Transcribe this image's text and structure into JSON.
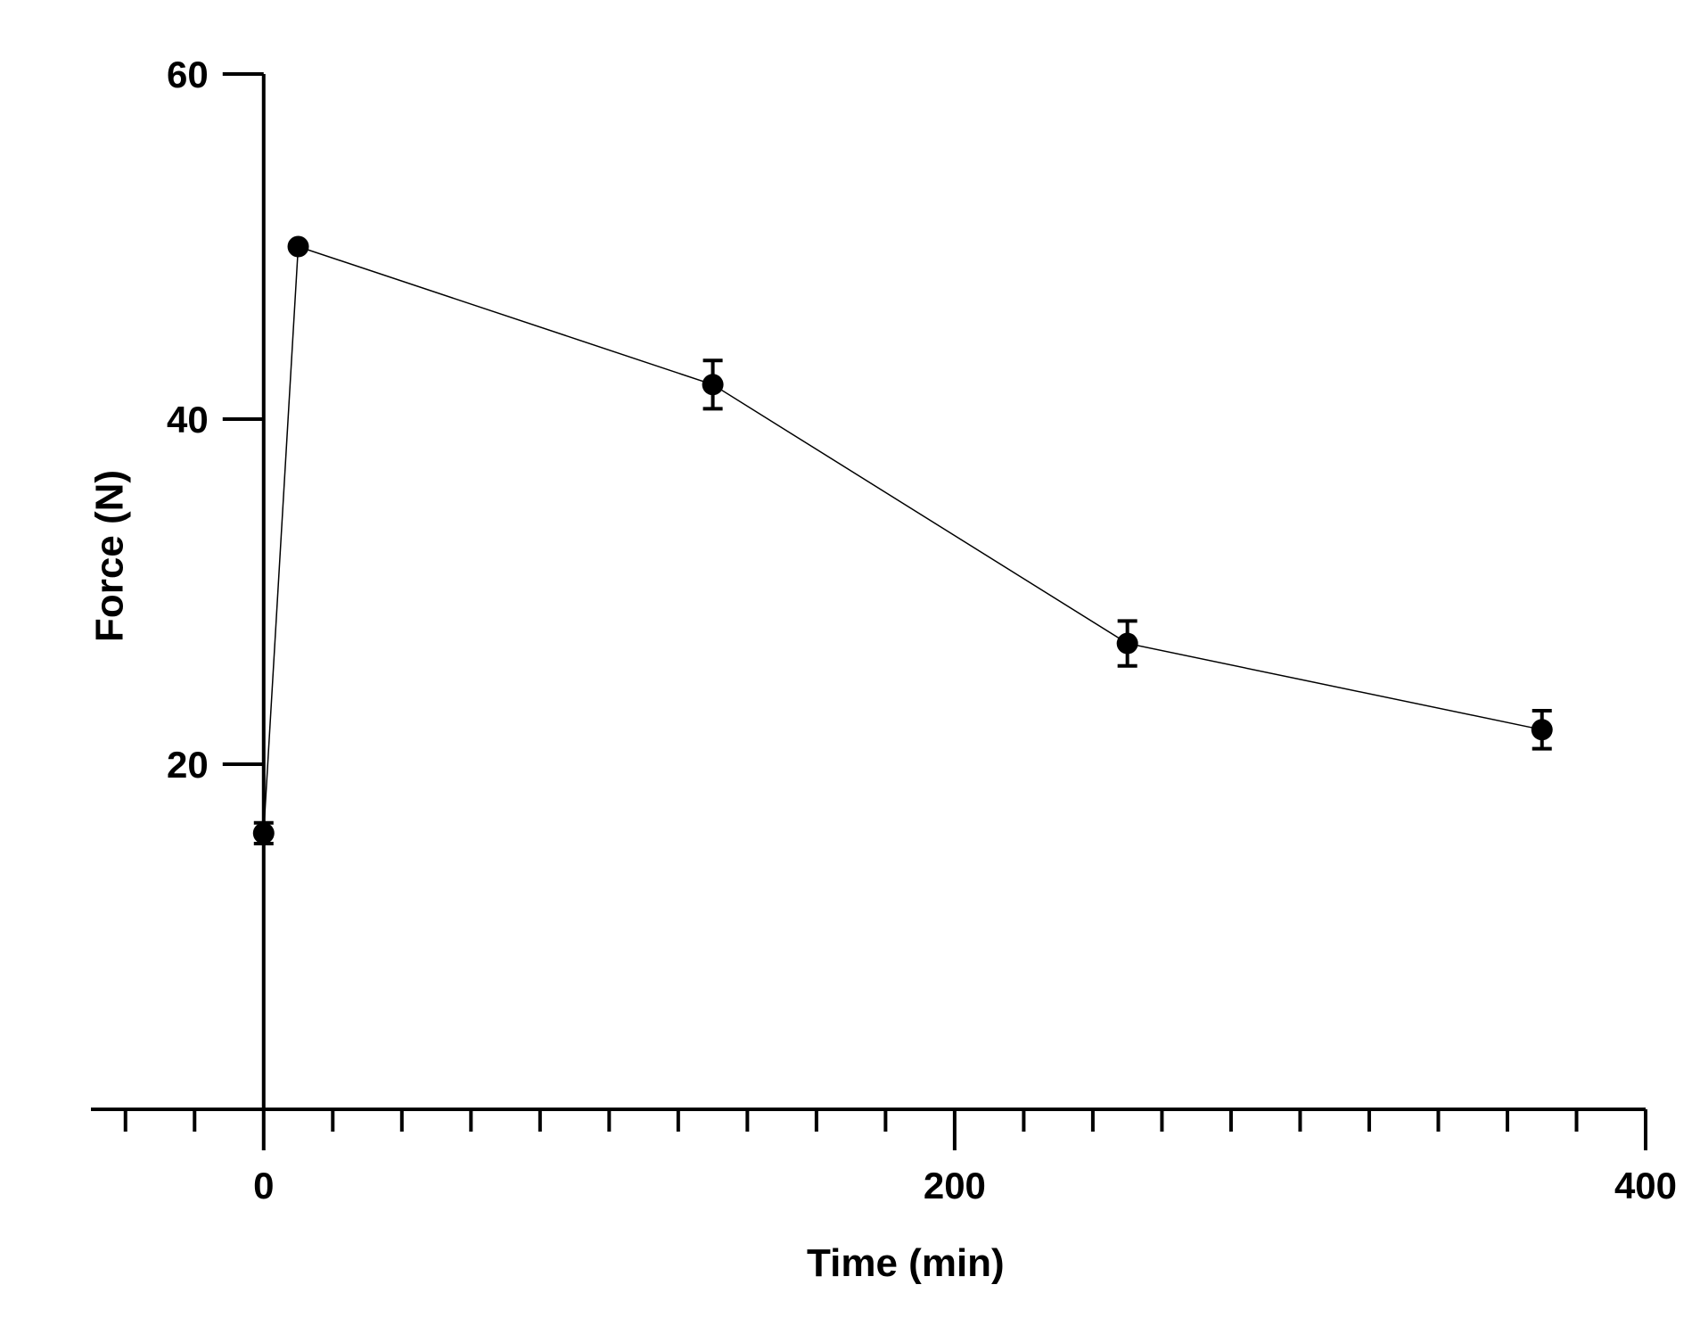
{
  "chart_data": {
    "type": "line",
    "title": "",
    "xlabel": "Time (min)",
    "ylabel": "Force (N)",
    "xlim": [
      -50,
      400
    ],
    "ylim": [
      0,
      60
    ],
    "x_ticks": [
      0,
      200,
      400
    ],
    "y_ticks": [
      20,
      40,
      60
    ],
    "x_minor_step": 20,
    "grid": false,
    "legend": "none",
    "colors": {
      "line": "#000000",
      "marker": "#000000",
      "axis": "#000000"
    },
    "series": [
      {
        "x": [
          0,
          10,
          130,
          250,
          370
        ],
        "y": [
          16.0,
          50.0,
          42.0,
          27.0,
          22.0
        ],
        "error": [
          0.6,
          0.0,
          1.4,
          1.3,
          1.1
        ]
      }
    ]
  }
}
